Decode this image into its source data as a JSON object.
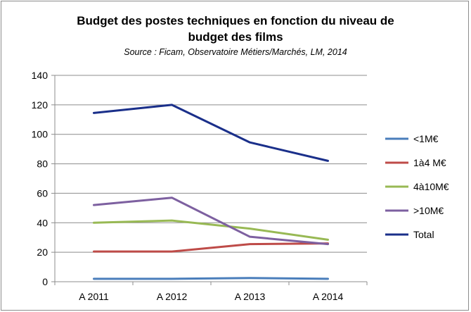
{
  "chart_data": {
    "type": "line",
    "title_line1": "Budget des postes techniques en fonction du niveau de",
    "title_line2": "budget des films",
    "subtitle": "Source : Ficam, Observatoire Métiers/Marchés, LM, 2014",
    "xlabel": "",
    "ylabel": "",
    "categories": [
      "A 2011",
      "A 2012",
      "A 2013",
      "A 2014"
    ],
    "ylim": [
      0,
      140
    ],
    "yticks": [
      0,
      20,
      40,
      60,
      80,
      100,
      120,
      140
    ],
    "grid": true,
    "legend_position": "right",
    "series": [
      {
        "name": "<1M€",
        "color": "#4a7ebb",
        "values": [
          2,
          2,
          2.5,
          2
        ]
      },
      {
        "name": "1à4 M€",
        "color": "#be4b48",
        "values": [
          20.5,
          20.5,
          25.5,
          26
        ]
      },
      {
        "name": "4à10M€",
        "color": "#98b954",
        "values": [
          40,
          41.5,
          36,
          28.5
        ]
      },
      {
        "name": ">10M€",
        "color": "#7d60a0",
        "values": [
          52,
          57,
          30.5,
          25.5
        ]
      },
      {
        "name": "Total",
        "color": "#1a2f8a",
        "values": [
          114.5,
          120,
          94.5,
          82
        ]
      }
    ]
  }
}
